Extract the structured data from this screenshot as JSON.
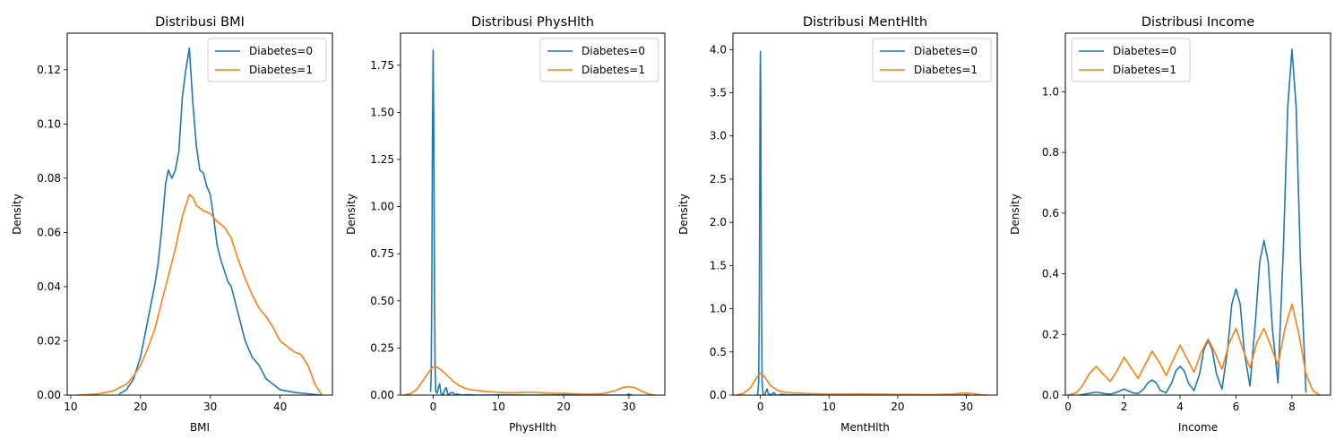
{
  "chart_data": [
    {
      "type": "line",
      "title": "Distribusi BMI",
      "xlabel": "BMI",
      "ylabel": "Density",
      "xlim": [
        9.5,
        47.5
      ],
      "ylim": [
        0,
        0.1335
      ],
      "xticks": [
        10,
        20,
        30,
        40
      ],
      "yticks": [
        0.0,
        0.02,
        0.04,
        0.06,
        0.08,
        0.1,
        0.12
      ],
      "ytick_labels": [
        "0.00",
        "0.02",
        "0.04",
        "0.06",
        "0.08",
        "0.10",
        "0.12"
      ],
      "legend_position": "upper right",
      "series": [
        {
          "name": "Diabetes=0",
          "color": "#1f77b4",
          "x": [
            17,
            18,
            19,
            20,
            21,
            22,
            22.5,
            23,
            23.6,
            24,
            24.5,
            25,
            25.5,
            26,
            26.5,
            27,
            27.5,
            28,
            28.5,
            29,
            29.5,
            30,
            30.5,
            31,
            31.5,
            32,
            32.5,
            33,
            33.5,
            34,
            35,
            36,
            37,
            38,
            39,
            40,
            42,
            44,
            46
          ],
          "y": [
            0.0005,
            0.002,
            0.006,
            0.014,
            0.027,
            0.04,
            0.048,
            0.06,
            0.078,
            0.083,
            0.08,
            0.083,
            0.09,
            0.11,
            0.12,
            0.128,
            0.108,
            0.092,
            0.083,
            0.082,
            0.077,
            0.074,
            0.065,
            0.055,
            0.05,
            0.046,
            0.042,
            0.04,
            0.035,
            0.03,
            0.02,
            0.014,
            0.011,
            0.006,
            0.004,
            0.002,
            0.001,
            0.0005,
            0.0
          ]
        },
        {
          "name": "Diabetes=1",
          "color": "#ff7f0e",
          "x": [
            11,
            14,
            16,
            18,
            19,
            20,
            21,
            22,
            23,
            24,
            25,
            26,
            27,
            27.5,
            28,
            29,
            30,
            31,
            32,
            33,
            34,
            35,
            36,
            37,
            38,
            39,
            40,
            41,
            42,
            43,
            44,
            45,
            46
          ],
          "y": [
            0.0,
            0.0005,
            0.0015,
            0.004,
            0.007,
            0.011,
            0.017,
            0.024,
            0.034,
            0.044,
            0.054,
            0.066,
            0.074,
            0.073,
            0.07,
            0.068,
            0.067,
            0.064,
            0.062,
            0.058,
            0.05,
            0.043,
            0.037,
            0.032,
            0.029,
            0.025,
            0.02,
            0.018,
            0.016,
            0.015,
            0.011,
            0.004,
            0.0
          ]
        }
      ]
    },
    {
      "type": "line",
      "title": "Distribusi PhysHlth",
      "xlabel": "PhysHlth",
      "ylabel": "Density",
      "xlim": [
        -5.0,
        35.5
      ],
      "ylim": [
        0,
        1.92
      ],
      "xticks": [
        0,
        10,
        20,
        30
      ],
      "yticks": [
        0.0,
        0.25,
        0.5,
        0.75,
        1.0,
        1.25,
        1.5,
        1.75
      ],
      "ytick_labels": [
        "0.00",
        "0.25",
        "0.50",
        "0.75",
        "1.00",
        "1.25",
        "1.50",
        "1.75"
      ],
      "legend_position": "upper right",
      "series": [
        {
          "name": "Diabetes=0",
          "color": "#1f77b4",
          "x": [
            -0.4,
            -0.3,
            -0.2,
            -0.1,
            0.0,
            0.1,
            0.2,
            0.3,
            0.4,
            0.6,
            0.9,
            1.0,
            1.2,
            1.5,
            1.8,
            2.0,
            2.3,
            2.6,
            3.0,
            3.3,
            3.6,
            4.0,
            4.5,
            5.0,
            7.0,
            10.0,
            15.0,
            20.0,
            25.0,
            29.5,
            30.0,
            30.5
          ],
          "y": [
            0.02,
            0.1,
            0.6,
            1.4,
            1.83,
            1.4,
            0.6,
            0.15,
            0.02,
            0.01,
            0.05,
            0.06,
            0.01,
            0.0,
            0.03,
            0.04,
            0.0,
            0.01,
            0.015,
            0.0,
            0.006,
            0.003,
            0.0,
            0.002,
            0.0,
            0.001,
            0.0,
            0.001,
            0.0,
            0.0,
            0.005,
            0.0
          ]
        },
        {
          "name": "Diabetes=1",
          "color": "#ff7f0e",
          "x": [
            -4.5,
            -3.5,
            -2.5,
            -1.5,
            -0.5,
            0.0,
            0.5,
            1.0,
            2.0,
            3.0,
            4.0,
            5.0,
            6.0,
            8.0,
            10.0,
            12.0,
            14.0,
            15.0,
            17.0,
            19.0,
            20.0,
            22.0,
            24.0,
            26.0,
            28.0,
            29.0,
            30.0,
            31.0,
            32.0,
            33.0,
            34.0
          ],
          "y": [
            0.0,
            0.008,
            0.03,
            0.08,
            0.13,
            0.15,
            0.15,
            0.14,
            0.11,
            0.075,
            0.05,
            0.035,
            0.028,
            0.02,
            0.015,
            0.012,
            0.015,
            0.016,
            0.012,
            0.009,
            0.01,
            0.007,
            0.005,
            0.008,
            0.025,
            0.04,
            0.045,
            0.038,
            0.02,
            0.006,
            0.0
          ]
        }
      ]
    },
    {
      "type": "line",
      "title": "Distribusi MentHlth",
      "xlabel": "MentHlth",
      "ylabel": "Density",
      "xlim": [
        -4.0,
        34.5
      ],
      "ylim": [
        0,
        4.19
      ],
      "xticks": [
        0,
        10,
        20,
        30
      ],
      "yticks": [
        0.0,
        0.5,
        1.0,
        1.5,
        2.0,
        2.5,
        3.0,
        3.5,
        4.0
      ],
      "ytick_labels": [
        "0.0",
        "0.5",
        "1.0",
        "1.5",
        "2.0",
        "2.5",
        "3.0",
        "3.5",
        "4.0"
      ],
      "legend_position": "upper right",
      "series": [
        {
          "name": "Diabetes=0",
          "color": "#1f77b4",
          "x": [
            -0.4,
            -0.25,
            -0.15,
            -0.05,
            0.0,
            0.05,
            0.15,
            0.25,
            0.4,
            0.6,
            0.9,
            1.0,
            1.1,
            1.4,
            1.8,
            2.0,
            2.2,
            2.6,
            3.0,
            4.0,
            5.0,
            10.0,
            20.0,
            29.5,
            30.0,
            30.5
          ],
          "y": [
            0.0,
            0.15,
            1.2,
            3.5,
            3.98,
            3.5,
            1.2,
            0.15,
            0.0,
            0.0,
            0.06,
            0.07,
            0.03,
            0.0,
            0.02,
            0.03,
            0.0,
            0.0,
            0.01,
            0.003,
            0.002,
            0.001,
            0.0,
            0.0,
            0.004,
            0.0
          ]
        },
        {
          "name": "Diabetes=1",
          "color": "#ff7f0e",
          "x": [
            -3.5,
            -2.5,
            -1.5,
            -0.8,
            -0.3,
            0.0,
            0.3,
            0.8,
            1.5,
            2.5,
            3.5,
            5.0,
            7.0,
            10.0,
            15.0,
            20.0,
            25.0,
            28.0,
            29.0,
            30.0,
            31.0,
            32.0,
            33.0
          ],
          "y": [
            0.0,
            0.02,
            0.08,
            0.17,
            0.23,
            0.25,
            0.24,
            0.19,
            0.11,
            0.055,
            0.035,
            0.025,
            0.018,
            0.012,
            0.014,
            0.009,
            0.006,
            0.012,
            0.02,
            0.025,
            0.018,
            0.005,
            0.0
          ]
        }
      ]
    },
    {
      "type": "line",
      "title": "Distribusi Income",
      "xlabel": "Income",
      "ylabel": "Density",
      "xlim": [
        -0.1,
        9.38
      ],
      "ylim": [
        0,
        1.193
      ],
      "xticks": [
        0,
        2,
        4,
        6,
        8
      ],
      "yticks": [
        0.0,
        0.2,
        0.4,
        0.6,
        0.8,
        1.0
      ],
      "ytick_labels": [
        "0.0",
        "0.2",
        "0.4",
        "0.6",
        "0.8",
        "1.0"
      ],
      "legend_position": "upper left",
      "series": [
        {
          "name": "Diabetes=0",
          "color": "#1f77b4",
          "x": [
            0.4,
            0.7,
            1.0,
            1.3,
            1.5,
            1.7,
            2.0,
            2.3,
            2.5,
            2.7,
            2.85,
            3.0,
            3.15,
            3.3,
            3.5,
            3.7,
            3.85,
            4.0,
            4.15,
            4.3,
            4.5,
            4.7,
            4.85,
            5.0,
            5.15,
            5.3,
            5.5,
            5.7,
            5.85,
            6.0,
            6.15,
            6.3,
            6.5,
            6.7,
            6.85,
            7.0,
            7.15,
            7.3,
            7.5,
            7.7,
            7.85,
            8.0,
            8.15,
            8.3,
            8.5
          ],
          "y": [
            0.0,
            0.005,
            0.01,
            0.005,
            0.003,
            0.008,
            0.02,
            0.008,
            0.005,
            0.02,
            0.04,
            0.05,
            0.04,
            0.015,
            0.008,
            0.04,
            0.08,
            0.095,
            0.08,
            0.04,
            0.015,
            0.07,
            0.15,
            0.18,
            0.15,
            0.07,
            0.02,
            0.15,
            0.3,
            0.35,
            0.3,
            0.14,
            0.03,
            0.25,
            0.44,
            0.51,
            0.44,
            0.22,
            0.04,
            0.5,
            0.95,
            1.14,
            0.95,
            0.45,
            0.01
          ]
        },
        {
          "name": "Diabetes=1",
          "color": "#ff7f0e",
          "x": [
            0.0,
            0.3,
            0.5,
            0.75,
            1.0,
            1.25,
            1.5,
            1.75,
            2.0,
            2.25,
            2.5,
            2.75,
            3.0,
            3.25,
            3.5,
            3.75,
            4.0,
            4.25,
            4.5,
            4.75,
            5.0,
            5.25,
            5.5,
            5.75,
            6.0,
            6.25,
            6.5,
            6.75,
            7.0,
            7.25,
            7.5,
            7.75,
            8.0,
            8.25,
            8.5,
            8.75,
            9.0
          ],
          "y": [
            0.0,
            0.008,
            0.03,
            0.07,
            0.095,
            0.07,
            0.045,
            0.08,
            0.125,
            0.09,
            0.055,
            0.1,
            0.145,
            0.11,
            0.065,
            0.115,
            0.165,
            0.12,
            0.075,
            0.14,
            0.185,
            0.14,
            0.085,
            0.17,
            0.22,
            0.15,
            0.09,
            0.175,
            0.22,
            0.16,
            0.1,
            0.22,
            0.3,
            0.2,
            0.07,
            0.015,
            0.0
          ]
        }
      ]
    }
  ]
}
